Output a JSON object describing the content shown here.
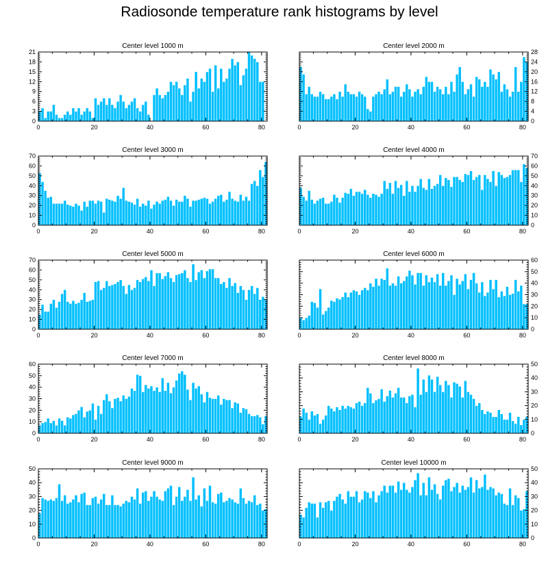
{
  "title": "Radiosonde temperature rank histograms by level",
  "colors": {
    "bar": "#00bfff",
    "bar_edge": "#ffffff",
    "axis": "#000000"
  },
  "chart_data": [
    {
      "type": "bar",
      "title": "Center level 1000 m",
      "xlim": [
        0,
        82
      ],
      "ylim": [
        0,
        21
      ],
      "yticks": [
        0,
        3,
        6,
        9,
        12,
        15,
        18,
        21
      ],
      "xticks": [
        0,
        20,
        40,
        60,
        80
      ],
      "values": [
        3,
        4,
        1,
        3,
        3,
        5,
        2,
        1,
        1,
        2,
        3,
        2,
        4,
        3,
        4,
        2,
        3,
        4,
        3,
        1,
        7,
        5,
        6,
        7,
        5,
        7,
        5,
        4,
        6,
        8,
        6,
        4,
        5,
        6,
        7,
        4,
        3,
        5,
        6,
        2,
        0,
        8,
        10,
        8,
        7,
        8,
        9,
        12,
        11,
        12,
        10,
        8,
        11,
        13,
        6,
        9,
        15,
        10,
        13,
        12,
        15,
        16,
        9,
        17,
        10,
        16,
        12,
        13,
        16,
        19,
        17,
        18,
        11,
        14,
        16,
        21,
        20,
        19,
        18,
        12,
        12
      ]
    },
    {
      "type": "bar",
      "title": "Center level 2000 m",
      "xlim": [
        0,
        82
      ],
      "ylim": [
        0,
        28
      ],
      "yticks": [
        0,
        4,
        8,
        12,
        16,
        20,
        24,
        28
      ],
      "xticks": [
        0,
        20,
        40,
        60,
        80
      ],
      "values": [
        22,
        19,
        11,
        14,
        11,
        10,
        10,
        12,
        11,
        9,
        9,
        10,
        11,
        9,
        12,
        10,
        15,
        12,
        11,
        11,
        10,
        12,
        11,
        10,
        5,
        4,
        10,
        11,
        12,
        11,
        13,
        17,
        11,
        12,
        14,
        14,
        10,
        12,
        15,
        13,
        10,
        12,
        13,
        11,
        14,
        18,
        16,
        16,
        12,
        14,
        13,
        11,
        14,
        11,
        16,
        12,
        19,
        22,
        16,
        11,
        13,
        15,
        10,
        18,
        17,
        14,
        16,
        14,
        21,
        19,
        17,
        20,
        12,
        15,
        13,
        10,
        12,
        22,
        12,
        16,
        26,
        24
      ]
    },
    {
      "type": "bar",
      "title": "Center level 3000 m",
      "xlim": [
        0,
        82
      ],
      "ylim": [
        0,
        70
      ],
      "yticks": [
        0,
        10,
        20,
        30,
        40,
        50,
        60,
        70
      ],
      "xticks": [
        0,
        20,
        40,
        60,
        80
      ],
      "values": [
        53,
        44,
        35,
        28,
        29,
        22,
        22,
        22,
        22,
        25,
        21,
        20,
        19,
        22,
        20,
        15,
        24,
        19,
        25,
        25,
        22,
        25,
        24,
        13,
        27,
        26,
        25,
        24,
        30,
        27,
        38,
        25,
        24,
        23,
        21,
        27,
        19,
        22,
        20,
        25,
        17,
        21,
        24,
        22,
        25,
        26,
        29,
        25,
        20,
        26,
        24,
        24,
        30,
        27,
        19,
        25,
        25,
        26,
        27,
        28,
        27,
        22,
        24,
        27,
        30,
        31,
        24,
        26,
        34,
        27,
        25,
        24,
        31,
        25,
        29,
        25,
        42,
        45,
        40,
        56,
        49,
        64
      ]
    },
    {
      "type": "bar",
      "title": "Center level 4000 m",
      "xlim": [
        0,
        82
      ],
      "ylim": [
        0,
        70
      ],
      "yticks": [
        0,
        10,
        20,
        30,
        40,
        50,
        60,
        70
      ],
      "xticks": [
        0,
        20,
        40,
        60,
        80
      ],
      "values": [
        38,
        29,
        25,
        35,
        26,
        22,
        25,
        27,
        28,
        22,
        22,
        24,
        31,
        28,
        23,
        28,
        33,
        32,
        37,
        30,
        34,
        34,
        32,
        36,
        31,
        28,
        32,
        31,
        29,
        32,
        45,
        37,
        43,
        32,
        45,
        38,
        41,
        30,
        45,
        34,
        40,
        34,
        40,
        47,
        38,
        36,
        47,
        37,
        40,
        42,
        51,
        40,
        48,
        46,
        39,
        49,
        49,
        46,
        44,
        52,
        51,
        55,
        46,
        49,
        51,
        36,
        51,
        47,
        44,
        55,
        40,
        54,
        51,
        48,
        49,
        51,
        56,
        56,
        56,
        44,
        62,
        58
      ]
    },
    {
      "type": "bar",
      "title": "Center level 5000 m",
      "xlim": [
        0,
        82
      ],
      "ylim": [
        0,
        70
      ],
      "yticks": [
        0,
        10,
        20,
        30,
        40,
        50,
        60,
        70
      ],
      "xticks": [
        0,
        20,
        40,
        60,
        80
      ],
      "values": [
        15,
        25,
        18,
        18,
        26,
        30,
        22,
        28,
        36,
        40,
        28,
        26,
        29,
        26,
        27,
        30,
        37,
        28,
        29,
        30,
        48,
        49,
        40,
        42,
        49,
        44,
        45,
        46,
        48,
        50,
        44,
        36,
        45,
        40,
        42,
        50,
        48,
        51,
        53,
        49,
        60,
        44,
        57,
        57,
        51,
        54,
        58,
        52,
        48,
        55,
        56,
        57,
        60,
        52,
        48,
        66,
        50,
        58,
        60,
        52,
        59,
        61,
        61,
        52,
        52,
        46,
        48,
        42,
        52,
        44,
        47,
        37,
        44,
        40,
        30,
        40,
        44,
        36,
        42,
        30,
        33,
        30
      ]
    },
    {
      "type": "bar",
      "title": "Center level 6000 m",
      "xlim": [
        0,
        82
      ],
      "ylim": [
        0,
        60
      ],
      "yticks": [
        0,
        10,
        20,
        30,
        40,
        50,
        60
      ],
      "xticks": [
        0,
        20,
        40,
        60,
        80
      ],
      "values": [
        10,
        8,
        10,
        12,
        24,
        23,
        19,
        35,
        13,
        16,
        19,
        25,
        24,
        27,
        26,
        28,
        32,
        28,
        32,
        34,
        33,
        30,
        34,
        36,
        34,
        40,
        37,
        44,
        38,
        44,
        43,
        53,
        38,
        40,
        38,
        46,
        40,
        42,
        46,
        51,
        47,
        39,
        49,
        49,
        38,
        47,
        41,
        45,
        41,
        48,
        38,
        49,
        38,
        42,
        47,
        30,
        44,
        39,
        42,
        48,
        35,
        43,
        49,
        40,
        32,
        41,
        29,
        32,
        43,
        35,
        43,
        28,
        33,
        29,
        37,
        30,
        31,
        43,
        33,
        38,
        22,
        22
      ]
    },
    {
      "type": "bar",
      "title": "Center level 7000 m",
      "xlim": [
        0,
        82
      ],
      "ylim": [
        0,
        60
      ],
      "yticks": [
        0,
        10,
        20,
        30,
        40,
        50,
        60
      ],
      "xticks": [
        0,
        20,
        40,
        60,
        80
      ],
      "values": [
        7,
        9,
        10,
        13,
        9,
        11,
        7,
        13,
        11,
        7,
        14,
        13,
        16,
        17,
        20,
        23,
        14,
        19,
        20,
        26,
        12,
        24,
        17,
        29,
        34,
        28,
        22,
        30,
        31,
        28,
        33,
        30,
        32,
        39,
        37,
        51,
        50,
        36,
        42,
        39,
        41,
        37,
        40,
        36,
        48,
        37,
        44,
        35,
        40,
        46,
        52,
        54,
        51,
        38,
        29,
        44,
        39,
        41,
        34,
        27,
        36,
        31,
        30,
        30,
        33,
        25,
        30,
        29,
        29,
        22,
        27,
        26,
        18,
        22,
        21,
        17,
        15,
        15,
        16,
        14,
        8,
        15
      ]
    },
    {
      "type": "bar",
      "title": "Center level 8000 m",
      "xlim": [
        0,
        82
      ],
      "ylim": [
        0,
        50
      ],
      "yticks": [
        0,
        10,
        20,
        30,
        40,
        50
      ],
      "xticks": [
        0,
        20,
        40,
        60,
        80
      ],
      "values": [
        12,
        18,
        15,
        10,
        16,
        13,
        14,
        7,
        10,
        13,
        20,
        18,
        16,
        19,
        17,
        20,
        18,
        20,
        19,
        18,
        22,
        23,
        20,
        22,
        33,
        29,
        22,
        24,
        25,
        32,
        23,
        27,
        31,
        26,
        29,
        33,
        26,
        26,
        22,
        27,
        28,
        19,
        47,
        28,
        39,
        30,
        42,
        39,
        30,
        41,
        35,
        30,
        38,
        35,
        26,
        37,
        36,
        34,
        26,
        38,
        30,
        28,
        25,
        20,
        22,
        17,
        14,
        16,
        15,
        12,
        12,
        17,
        14,
        10,
        10,
        15,
        9,
        7,
        12,
        6,
        10,
        12
      ]
    },
    {
      "type": "bar",
      "title": "Center level 9000 m",
      "xlim": [
        0,
        82
      ],
      "ylim": [
        0,
        50
      ],
      "yticks": [
        0,
        10,
        20,
        30,
        40,
        50
      ],
      "xticks": [
        0,
        20,
        40,
        60,
        80
      ],
      "values": [
        18,
        29,
        28,
        27,
        28,
        27,
        29,
        39,
        27,
        31,
        25,
        26,
        28,
        31,
        26,
        32,
        33,
        24,
        24,
        29,
        30,
        25,
        28,
        32,
        24,
        24,
        31,
        24,
        24,
        23,
        25,
        27,
        26,
        30,
        28,
        36,
        25,
        33,
        34,
        27,
        30,
        34,
        30,
        28,
        27,
        34,
        36,
        38,
        24,
        30,
        37,
        27,
        30,
        35,
        27,
        44,
        28,
        31,
        23,
        36,
        27,
        38,
        26,
        25,
        32,
        33,
        26,
        27,
        29,
        28,
        26,
        25,
        36,
        29,
        25,
        27,
        26,
        31,
        24,
        25,
        20,
        21
      ]
    },
    {
      "type": "bar",
      "title": "Center level 10000 m",
      "xlim": [
        0,
        82
      ],
      "ylim": [
        0,
        50
      ],
      "yticks": [
        0,
        10,
        20,
        30,
        40,
        50
      ],
      "xticks": [
        0,
        20,
        40,
        60,
        80
      ],
      "values": [
        17,
        15,
        22,
        26,
        25,
        25,
        15,
        26,
        22,
        26,
        27,
        20,
        27,
        30,
        32,
        28,
        25,
        34,
        30,
        30,
        34,
        26,
        28,
        34,
        33,
        29,
        34,
        26,
        31,
        34,
        38,
        33,
        38,
        38,
        33,
        41,
        35,
        40,
        35,
        33,
        37,
        42,
        47,
        31,
        40,
        31,
        44,
        35,
        39,
        32,
        28,
        38,
        42,
        43,
        34,
        37,
        40,
        33,
        38,
        35,
        37,
        44,
        33,
        42,
        36,
        37,
        46,
        35,
        37,
        36,
        31,
        33,
        32,
        25,
        24,
        36,
        24,
        31,
        29,
        20,
        21,
        34
      ]
    }
  ]
}
